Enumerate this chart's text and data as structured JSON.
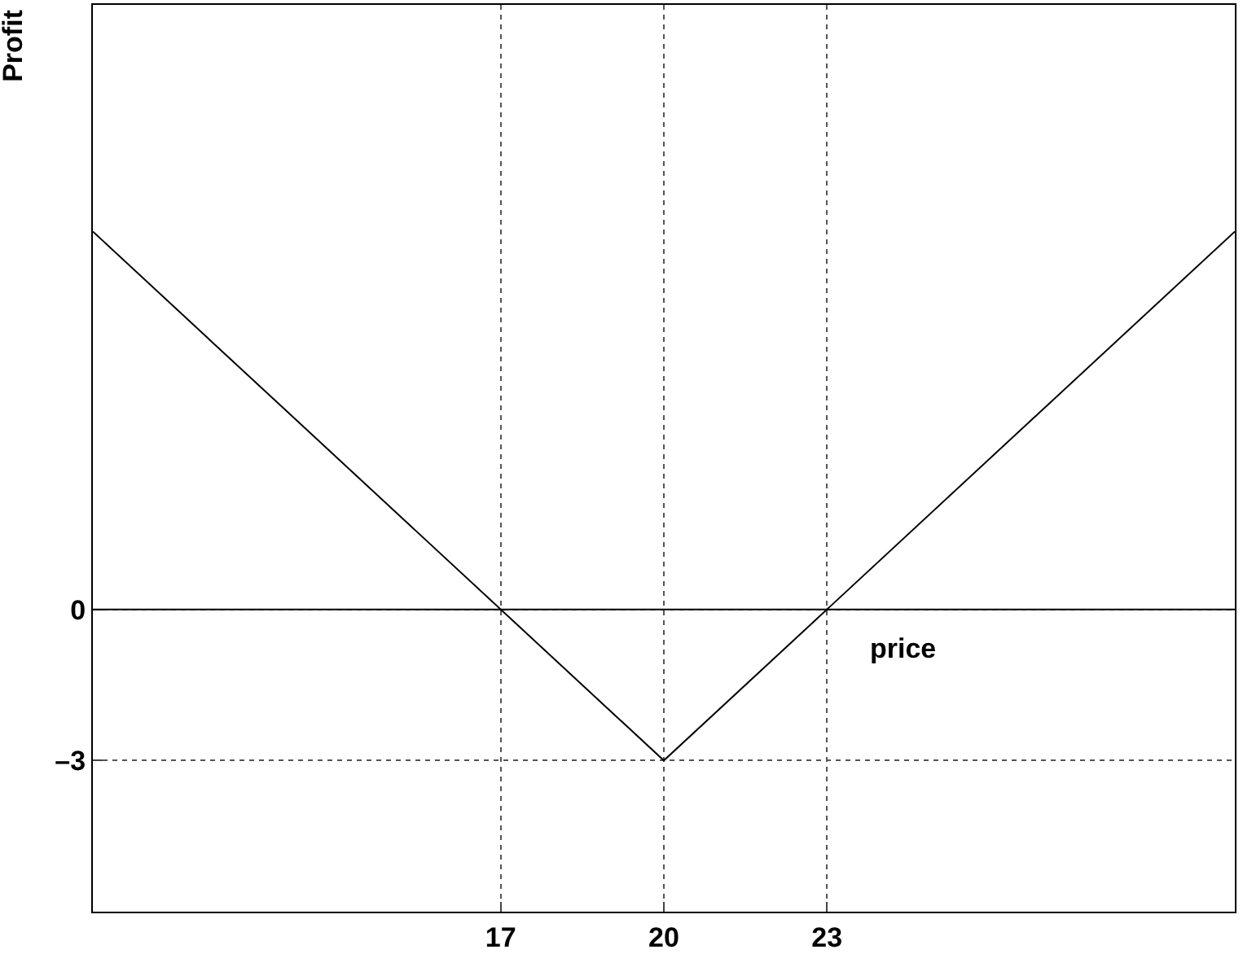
{
  "chart_data": {
    "type": "line",
    "xlabel": "price",
    "ylabel": "Profit",
    "x": [
      9.5,
      20,
      30.5
    ],
    "series": [
      {
        "color": "#000000",
        "values": [
          7.5,
          -3,
          7.5
        ]
      }
    ],
    "xlim": [
      9.5,
      30.5
    ],
    "ylim": [
      -6,
      12
    ],
    "xticks": [
      17,
      20,
      23
    ],
    "yticks": [
      {
        "value": -3,
        "label": "–3"
      },
      0
    ],
    "grid": true,
    "marker": "none",
    "line_style": "solid",
    "ref_lines": [
      {
        "axis": "y",
        "value": 0,
        "color": "#000000",
        "line_style": "solid"
      }
    ]
  }
}
